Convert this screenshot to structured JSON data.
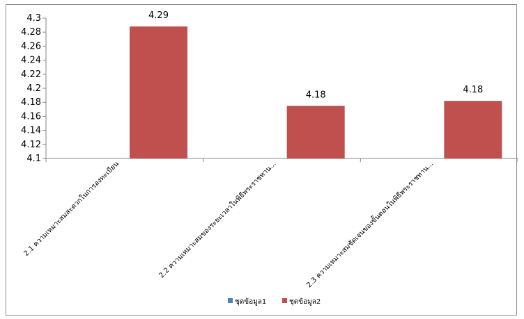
{
  "chart_data": {
    "type": "bar",
    "categories": [
      "2.1 ความเหมาะสมสะดวกในการลงทะเบียน",
      "2.2 ความเหมาะสมของระยะเวลาในพิธีพระราชทาน...",
      "2.3 ความเหมาะสมชัดเจนของขั้นตอนในพิธีพระราชทาน..."
    ],
    "series": [
      {
        "name": "ชุดข้อมูล1",
        "values": [
          null,
          null,
          null
        ],
        "color": "#4f81bd"
      },
      {
        "name": "ชุดข้อมูล2",
        "values": [
          4.288,
          4.175,
          4.182
        ],
        "color": "#c0504d"
      }
    ],
    "data_labels": [
      "4.29",
      "4.18",
      "4.18"
    ],
    "ylim": [
      4.1,
      4.3
    ],
    "yticks": [
      "4.3",
      "4.28",
      "4.26",
      "4.24",
      "4.22",
      "4.2",
      "4.18",
      "4.16",
      "4.14",
      "4.12",
      "4.1"
    ],
    "ytick_values": [
      4.3,
      4.28,
      4.26,
      4.24,
      4.22,
      4.2,
      4.18,
      4.16,
      4.14,
      4.12,
      4.1
    ],
    "grid": false,
    "legend_position": "bottom",
    "title": "",
    "xlabel": "",
    "ylabel": ""
  }
}
